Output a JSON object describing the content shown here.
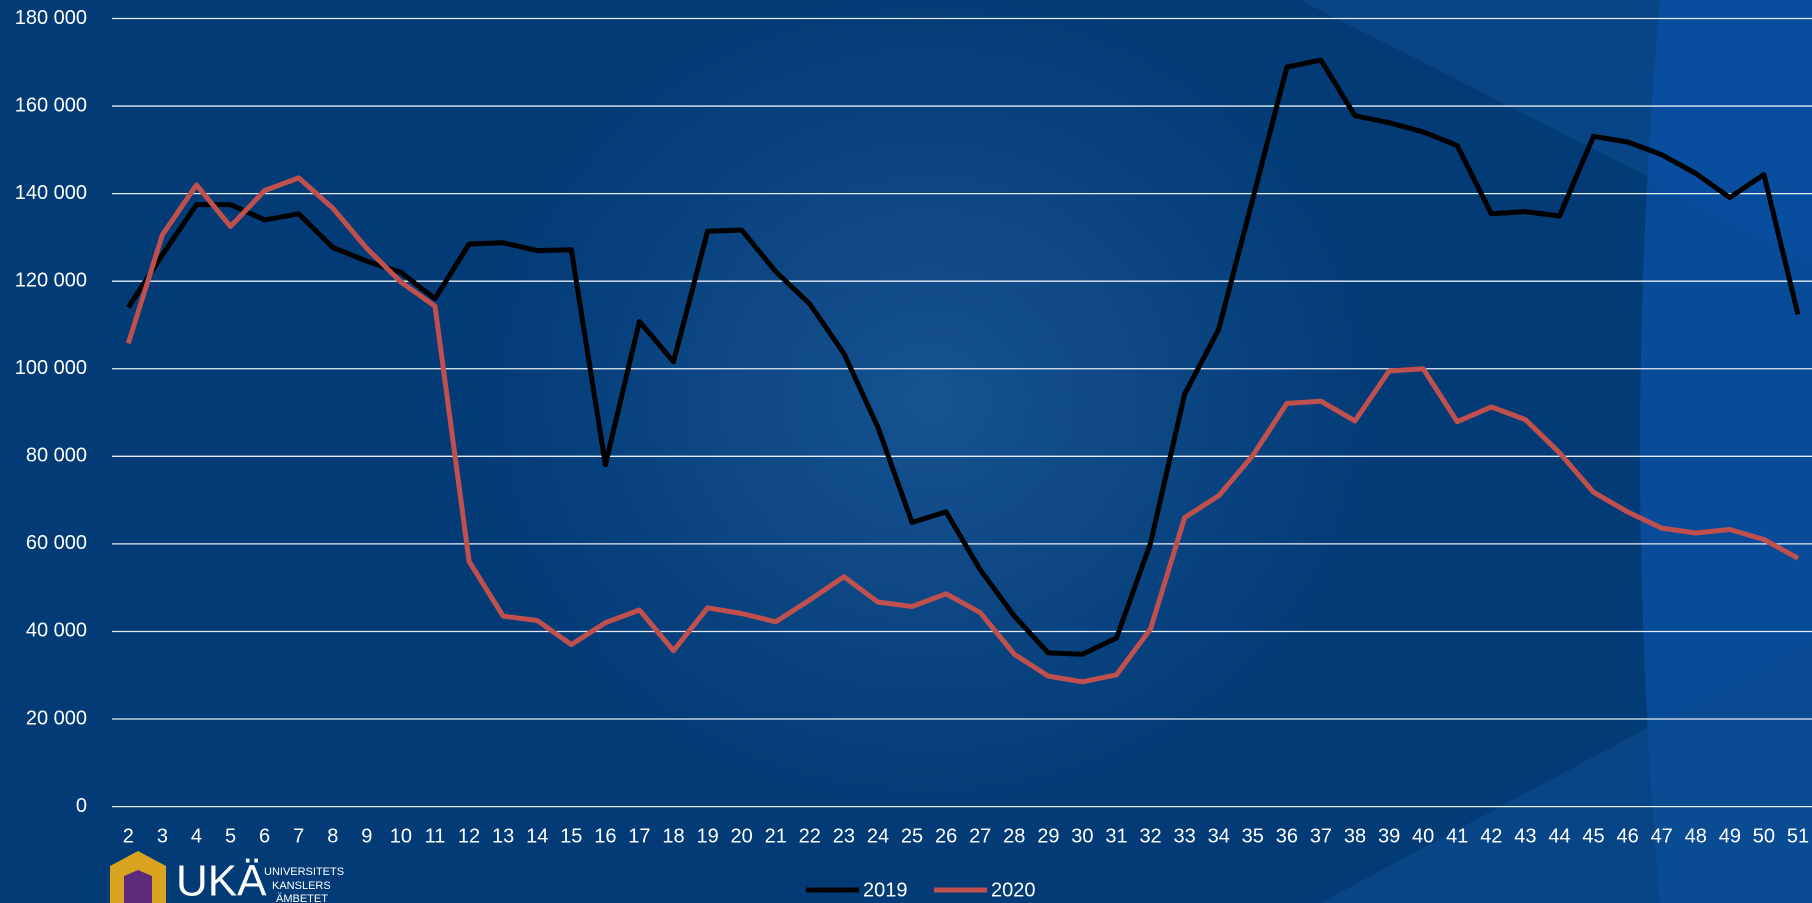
{
  "chart_data": {
    "type": "line",
    "categories": [
      "2",
      "3",
      "4",
      "5",
      "6",
      "7",
      "8",
      "9",
      "10",
      "11",
      "12",
      "13",
      "14",
      "15",
      "16",
      "17",
      "18",
      "19",
      "20",
      "21",
      "22",
      "23",
      "24",
      "25",
      "26",
      "27",
      "28",
      "29",
      "30",
      "31",
      "32",
      "33",
      "34",
      "35",
      "36",
      "37",
      "38",
      "39",
      "40",
      "41",
      "42",
      "43",
      "44",
      "45",
      "46",
      "47",
      "48",
      "49",
      "50",
      "51"
    ],
    "series": [
      {
        "name": "2019",
        "color": "#000000",
        "values": [
          114000,
          126000,
          137500,
          137500,
          134000,
          135400,
          127700,
          124600,
          122000,
          116000,
          128500,
          128800,
          127000,
          127200,
          78100,
          110800,
          101600,
          131400,
          131700,
          122200,
          114800,
          103500,
          86600,
          64900,
          67300,
          54100,
          43500,
          35100,
          34800,
          38500,
          60200,
          94200,
          109000,
          138800,
          168900,
          170500,
          157800,
          156200,
          154100,
          151000,
          135400,
          135900,
          134900,
          153100,
          151800,
          148900,
          144600,
          139100,
          144400,
          112400
        ]
      },
      {
        "name": "2020",
        "color": "#c0504d",
        "values": [
          105800,
          130600,
          142000,
          132500,
          140700,
          143600,
          136700,
          127500,
          119800,
          114300,
          56000,
          43500,
          42500,
          37000,
          42000,
          44900,
          35600,
          45400,
          44100,
          42200,
          47200,
          52500,
          46700,
          45700,
          48600,
          44300,
          34800,
          29800,
          28500,
          30100,
          40600,
          66000,
          71000,
          80200,
          92100,
          92600,
          88100,
          99500,
          100000,
          87900,
          91300,
          88400,
          80800,
          71800,
          67300,
          63600,
          62500,
          63300,
          61000,
          56700
        ]
      }
    ],
    "ylim": [
      0,
      180000
    ],
    "yticks": [
      0,
      {
        "value": 20000,
        "label": "20 000"
      },
      {
        "value": 40000,
        "label": "40 000"
      },
      {
        "value": 60000,
        "label": "60 000"
      },
      {
        "value": 80000,
        "label": "80 000"
      },
      {
        "value": 100000,
        "label": "100 000"
      },
      {
        "value": 120000,
        "label": "120 000"
      },
      {
        "value": 140000,
        "label": "140 000"
      },
      {
        "value": 160000,
        "label": "160 000"
      },
      {
        "value": 180000,
        "label": "180 000"
      }
    ],
    "grid": true,
    "legend": "bottom"
  },
  "logo": {
    "name": "UKÄ",
    "lines": [
      "UNIVERSITETS",
      "KANSLERS",
      "ÄMBETET"
    ]
  }
}
